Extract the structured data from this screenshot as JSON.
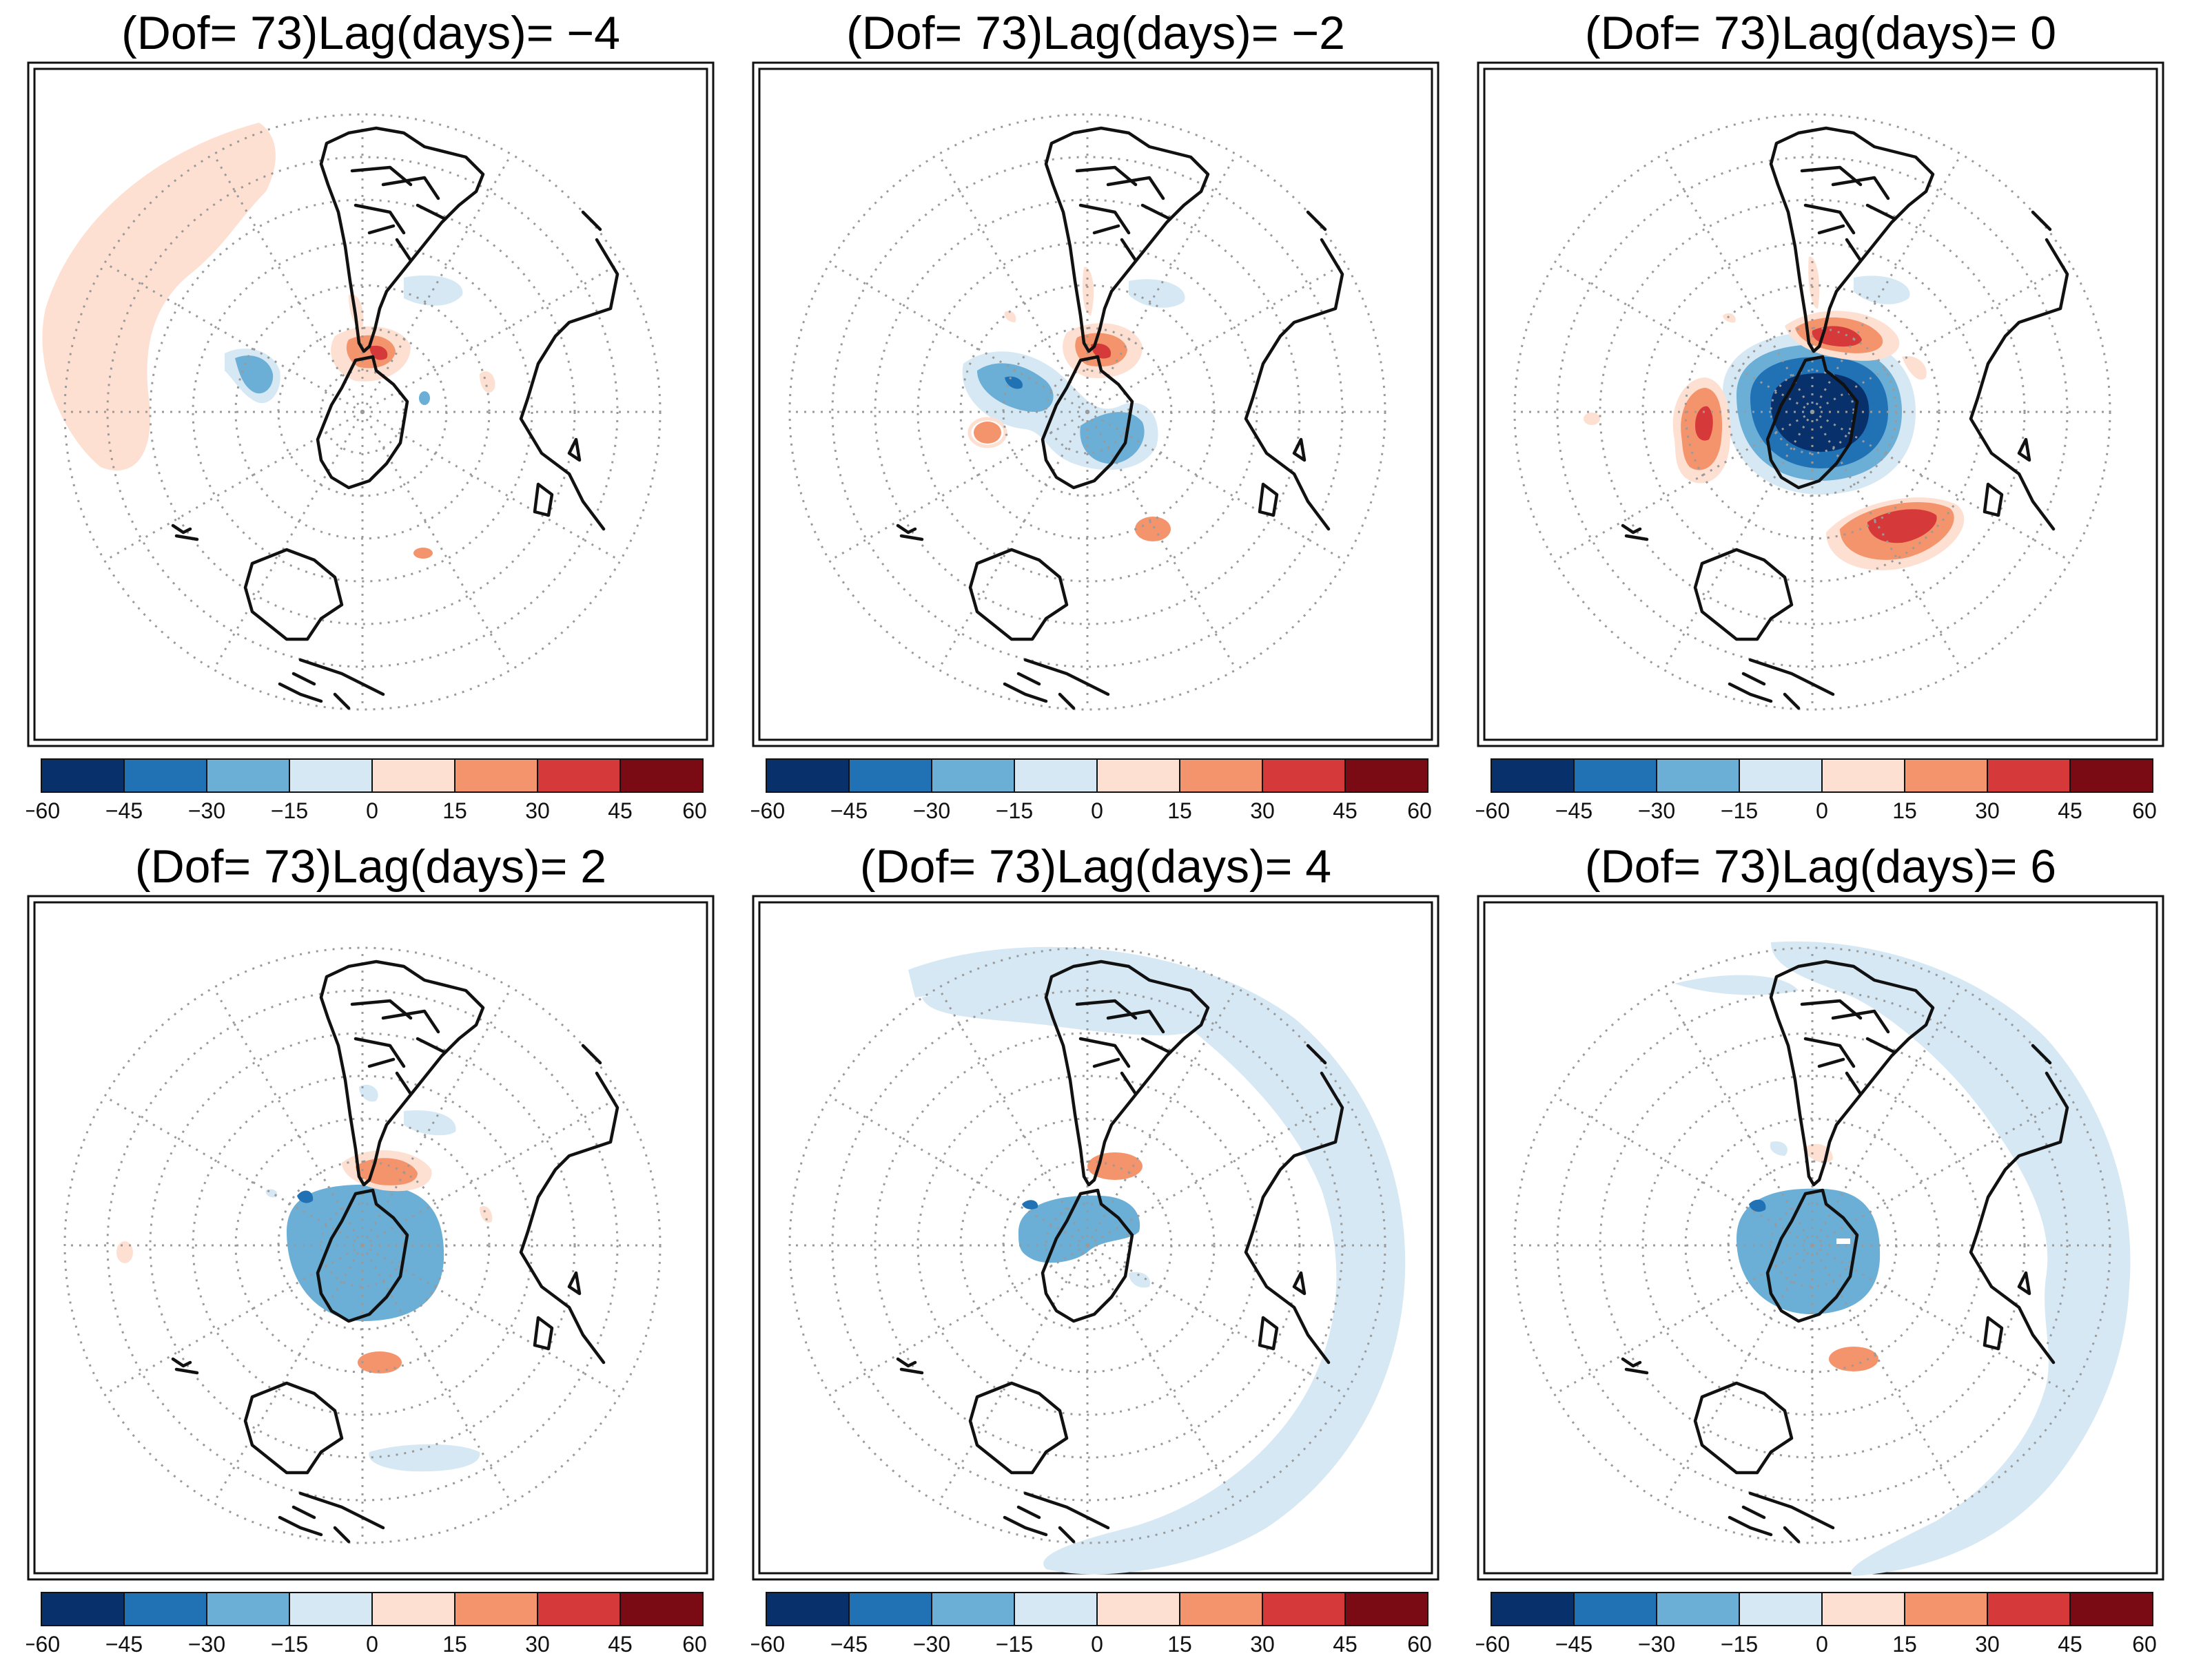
{
  "figure": {
    "panels": [
      {
        "title": "(Dof= 73)Lag(days)= −4"
      },
      {
        "title": "(Dof= 73)Lag(days)= −2"
      },
      {
        "title": "(Dof= 73)Lag(days)= 0"
      },
      {
        "title": "(Dof= 73)Lag(days)= 2"
      },
      {
        "title": "(Dof= 73)Lag(days)= 4"
      },
      {
        "title": "(Dof= 73)Lag(days)= 6"
      }
    ],
    "colorbar": {
      "ticks": [
        "−60",
        "−45",
        "−30",
        "−15",
        "0",
        "15",
        "30",
        "45",
        "60"
      ],
      "colors": [
        "#08306b",
        "#2171b5",
        "#6baed6",
        "#d6e8f4",
        "#fde0d2",
        "#f4946c",
        "#d6393a",
        "#7a0a14"
      ]
    }
  }
}
